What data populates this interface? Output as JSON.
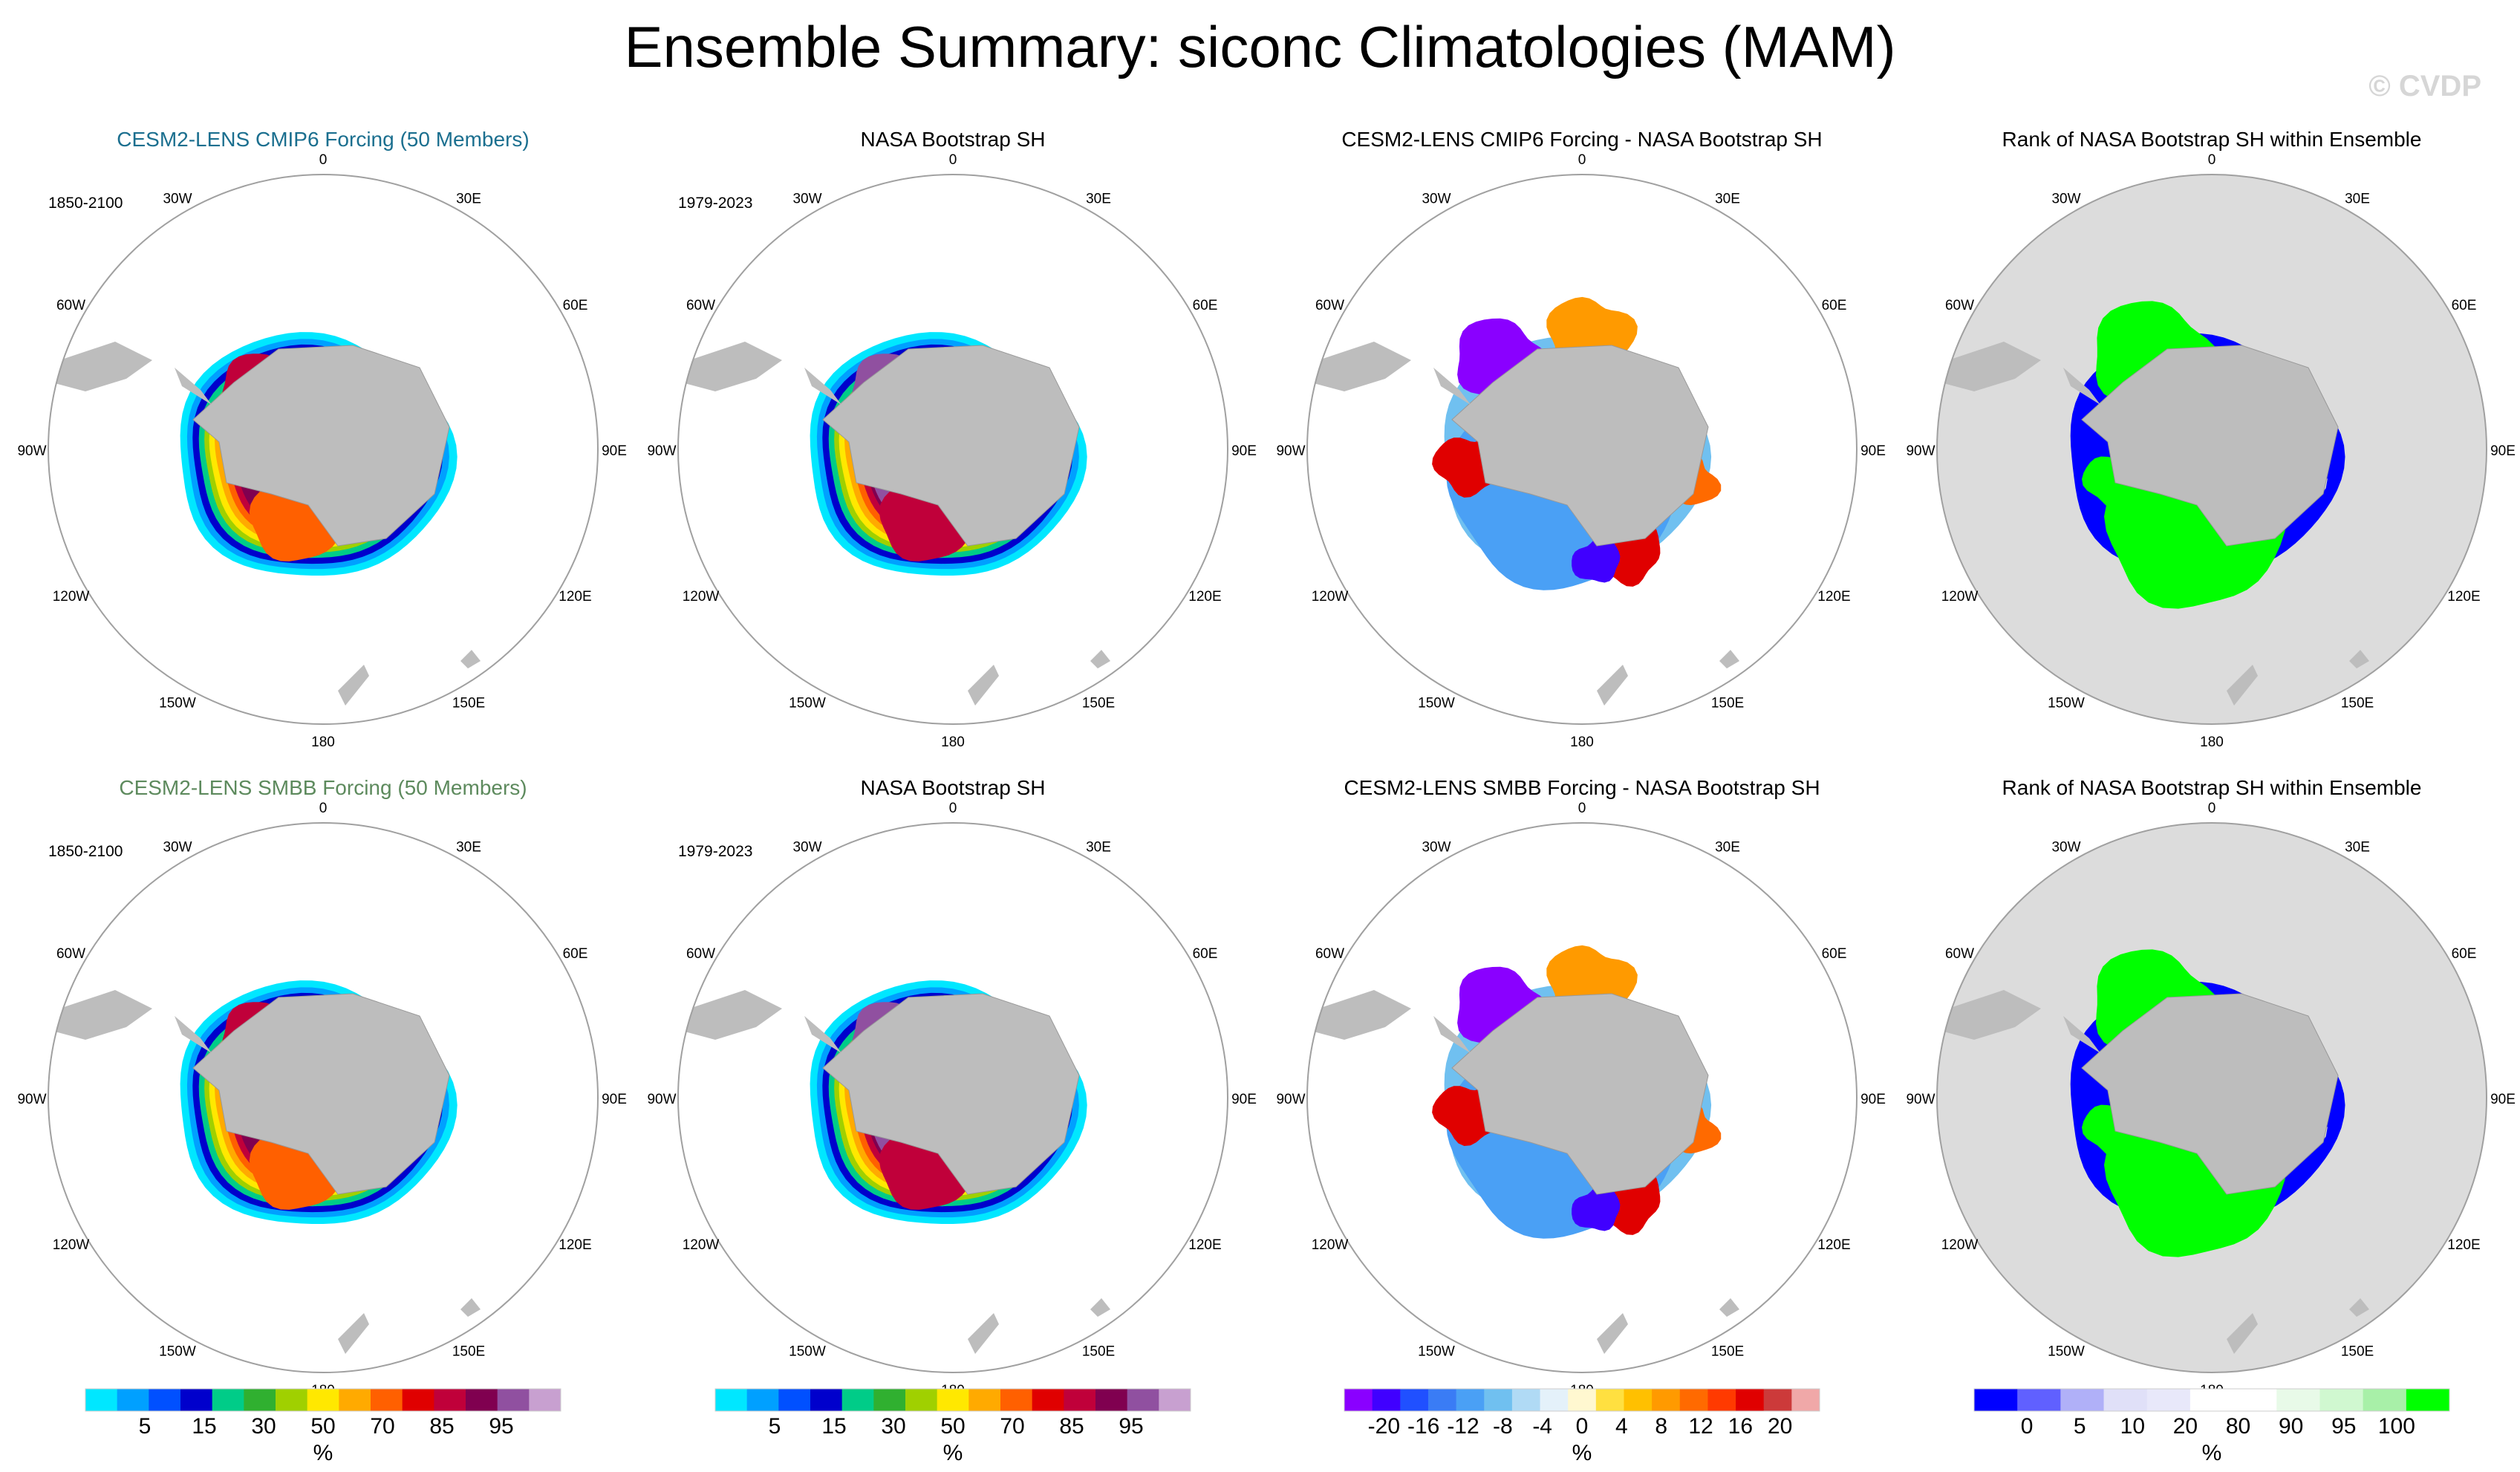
{
  "title": "Ensemble Summary: siconc Climatologies (MAM)",
  "watermark": "© CVDP",
  "colors": {
    "land": "#bdbdbd",
    "rank_bg": "#dcdcdc",
    "ocean": "#ffffff",
    "title_cmip6": "#1b6f8f",
    "title_smbb": "#5d8a5d",
    "title_default": "#000000"
  },
  "lon_labels": [
    "0",
    "30E",
    "60E",
    "90E",
    "120E",
    "150E",
    "180",
    "150W",
    "120W",
    "90W",
    "60W",
    "30W"
  ],
  "colorbars": {
    "conc": {
      "colors": [
        "#00e7ff",
        "#00a0ff",
        "#0050ff",
        "#0000cc",
        "#00cc88",
        "#30b030",
        "#a0d000",
        "#ffe800",
        "#ffaa00",
        "#ff6000",
        "#e00000",
        "#c0003a",
        "#800050",
        "#9050a0",
        "#c8a0d0"
      ],
      "labels": [
        "5",
        "15",
        "30",
        "50",
        "70",
        "85",
        "95"
      ],
      "units": "%"
    },
    "diff": {
      "colors": [
        "#8a00ff",
        "#4000ff",
        "#2050ff",
        "#3a7cf5",
        "#4aa0f5",
        "#70c0f0",
        "#b0daf5",
        "#e4f1fa",
        "#fff8d0",
        "#ffe040",
        "#ffc000",
        "#ff9a00",
        "#ff6a00",
        "#ff3a00",
        "#e00000",
        "#cc3a3a",
        "#f0a8a8"
      ],
      "labels": [
        "-20",
        "-16",
        "-12",
        "-8",
        "-4",
        "0",
        "4",
        "8",
        "12",
        "16",
        "20"
      ],
      "units": "%"
    },
    "rank": {
      "colors": [
        "#0000ff",
        "#6060ff",
        "#b0b0f8",
        "#e0e0f8",
        "#e8e8fa",
        "#ffffff",
        "#ffffff",
        "#e8fae8",
        "#d0f8d0",
        "#a8f0a8",
        "#00ff00"
      ],
      "labels": [
        "0",
        "5",
        "10",
        "20",
        "80",
        "90",
        "95",
        "100"
      ],
      "units": "%"
    }
  },
  "panels": [
    {
      "title": "CESM2-LENS CMIP6 Forcing (50 Members)",
      "title_color": "cmip6",
      "years": "1850-2100",
      "kind": "model"
    },
    {
      "title": "NASA Bootstrap SH",
      "title_color": "default",
      "years": "1979-2023",
      "kind": "obs"
    },
    {
      "title": "CESM2-LENS CMIP6 Forcing - NASA Bootstrap SH",
      "title_color": "default",
      "years": "",
      "kind": "diff"
    },
    {
      "title": "Rank of NASA Bootstrap SH within Ensemble",
      "title_color": "default",
      "years": "",
      "kind": "rank"
    },
    {
      "title": "CESM2-LENS SMBB Forcing (50 Members)",
      "title_color": "smbb",
      "years": "1850-2100",
      "kind": "model"
    },
    {
      "title": "NASA Bootstrap SH",
      "title_color": "default",
      "years": "1979-2023",
      "kind": "obs"
    },
    {
      "title": "CESM2-LENS SMBB Forcing - NASA Bootstrap SH",
      "title_color": "default",
      "years": "",
      "kind": "diff"
    },
    {
      "title": "Rank of NASA Bootstrap SH within Ensemble",
      "title_color": "default",
      "years": "",
      "kind": "rank"
    }
  ],
  "chart_data": {
    "type": "heatmap",
    "projection": "south polar stereographic",
    "variable": "siconc",
    "season": "MAM",
    "units": "%",
    "title": "Ensemble Summary: siconc Climatologies (MAM)",
    "longitude_ticks": [
      "0",
      "30E",
      "60E",
      "90E",
      "120E",
      "150E",
      "180",
      "150W",
      "120W",
      "90W",
      "60W",
      "30W"
    ],
    "conc_levels": [
      5,
      10,
      15,
      20,
      30,
      40,
      50,
      60,
      70,
      80,
      85,
      90,
      95,
      99
    ],
    "diff_levels": [
      -20,
      -18,
      -16,
      -14,
      -12,
      -10,
      -8,
      -6,
      -4,
      -2,
      0,
      2,
      4,
      6,
      8,
      10,
      12,
      14,
      16,
      18,
      20
    ],
    "rank_levels": [
      0,
      5,
      10,
      20,
      80,
      90,
      95,
      100
    ],
    "panels": [
      {
        "row": 1,
        "col": 1,
        "title": "CESM2-LENS CMIP6 Forcing (50 Members)",
        "period": "1850-2100"
      },
      {
        "row": 1,
        "col": 2,
        "title": "NASA Bootstrap SH",
        "period": "1979-2023"
      },
      {
        "row": 1,
        "col": 3,
        "title": "CESM2-LENS CMIP6 Forcing - NASA Bootstrap SH"
      },
      {
        "row": 1,
        "col": 4,
        "title": "Rank of NASA Bootstrap SH within Ensemble"
      },
      {
        "row": 2,
        "col": 1,
        "title": "CESM2-LENS SMBB Forcing (50 Members)",
        "period": "1850-2100"
      },
      {
        "row": 2,
        "col": 2,
        "title": "NASA Bootstrap SH",
        "period": "1979-2023"
      },
      {
        "row": 2,
        "col": 3,
        "title": "CESM2-LENS SMBB Forcing - NASA Bootstrap SH"
      },
      {
        "row": 2,
        "col": 4,
        "title": "Rank of NASA Bootstrap SH within Ensemble"
      }
    ]
  }
}
